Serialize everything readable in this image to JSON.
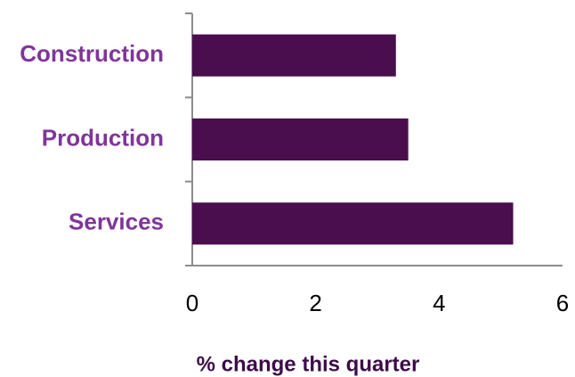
{
  "chart_data": {
    "type": "bar",
    "orientation": "horizontal",
    "categories": [
      "Construction",
      "Production",
      "Services"
    ],
    "values": [
      3.3,
      3.5,
      5.2
    ],
    "color": "#4a0e4e",
    "xlabel": "% change this quarter",
    "xlim": [
      0,
      6
    ],
    "xticks": [
      0,
      2,
      4,
      6
    ]
  }
}
